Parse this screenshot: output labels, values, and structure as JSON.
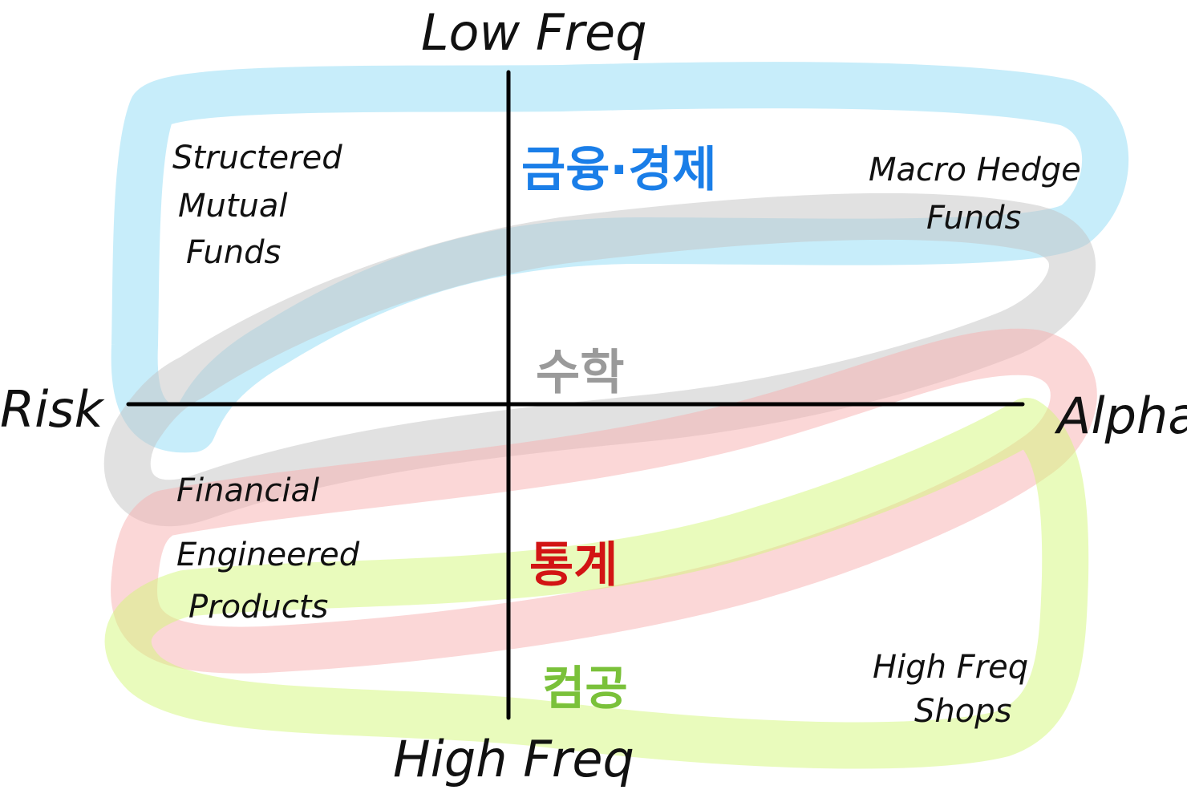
{
  "axes": {
    "top": "Low Freq",
    "bottom": "High Freq",
    "left": "Risk",
    "right": "Alpha"
  },
  "quadrant_labels": {
    "top_left": [
      "Structered",
      "Mutual",
      "Funds"
    ],
    "top_right": [
      "Macro Hedge",
      "Funds"
    ],
    "bottom_left": [
      "Financial",
      "Engineered",
      "Products"
    ],
    "bottom_right": [
      "High Freq",
      "Shops"
    ]
  },
  "bands": [
    {
      "label": "금융·경제",
      "color": "#1a7ee8",
      "highlight": "#8fdcf5"
    },
    {
      "label": "수학",
      "color": "#9a9a9a",
      "highlight": "#c4c4c4"
    },
    {
      "label": "통계",
      "color": "#d21414",
      "highlight": "#f7b0b0"
    },
    {
      "label": "컴공",
      "color": "#7ac13a",
      "highlight": "#d4f77a"
    }
  ]
}
